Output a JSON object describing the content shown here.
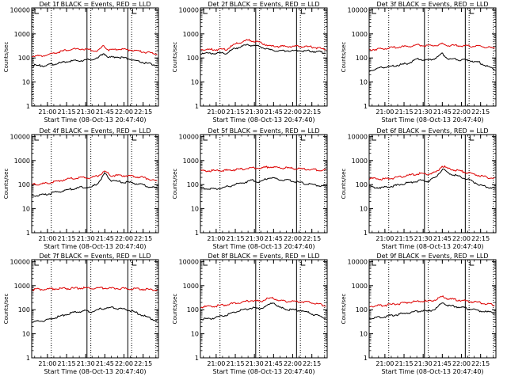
{
  "colors": {
    "events": "#000000",
    "lld": "#dd0000",
    "frame": "#000000",
    "background": "#ffffff"
  },
  "chart_data": [
    {
      "type": "line",
      "title": "Det 1f BLACK = Events, RED = LLD",
      "xlabel": "Start Time (08-Oct-13 20:47:40)",
      "ylabel": "Counts/sec",
      "yscale": "log",
      "ylim": [
        1,
        12000
      ],
      "xlim": [
        "20:47:40",
        "22:27:00"
      ],
      "x_ticks": [
        "21:00",
        "21:15",
        "21:30",
        "21:45",
        "22:00",
        "22:15"
      ],
      "y_ticks": [
        "1",
        "10",
        "100",
        "1000",
        "10000"
      ],
      "dotted_lines_at": [
        "20:49",
        "21:03",
        "21:34",
        "22:06",
        "22:25"
      ],
      "solid_lines_at": [
        "21:31",
        "22:03"
      ],
      "series": [
        {
          "name": "Events",
          "color": "#000000",
          "x": [
            "20:48",
            "20:58",
            "21:08",
            "21:18",
            "21:28",
            "21:34",
            "21:40",
            "21:44",
            "21:48",
            "21:55",
            "22:03",
            "22:10",
            "22:18",
            "22:26"
          ],
          "y": [
            50,
            48,
            58,
            75,
            80,
            85,
            100,
            160,
            105,
            110,
            95,
            75,
            60,
            50
          ]
        },
        {
          "name": "LLD",
          "color": "#dd0000",
          "x": [
            "20:48",
            "20:58",
            "21:08",
            "21:18",
            "21:28",
            "21:34",
            "21:40",
            "21:44",
            "21:48",
            "21:55",
            "22:03",
            "22:10",
            "22:18",
            "22:26"
          ],
          "y": [
            120,
            125,
            170,
            230,
            240,
            210,
            200,
            330,
            215,
            230,
            220,
            200,
            170,
            150
          ]
        }
      ]
    },
    {
      "type": "line",
      "title": "Det 2f BLACK = Events, RED = LLD",
      "xlabel": "Start Time (08-Oct-13 20:47:40)",
      "ylabel": "Counts/sec",
      "yscale": "log",
      "ylim": [
        1,
        12000
      ],
      "xlim": [
        "20:47:40",
        "22:27:00"
      ],
      "x_ticks": [
        "21:00",
        "21:15",
        "21:30",
        "21:45",
        "22:00",
        "22:15"
      ],
      "y_ticks": [
        "1",
        "10",
        "100",
        "1000",
        "10000"
      ],
      "dotted_lines_at": [
        "21:03",
        "21:34",
        "22:06",
        "22:25"
      ],
      "solid_lines_at": [
        "21:31",
        "22:03"
      ],
      "series": [
        {
          "name": "Events",
          "color": "#000000",
          "x": [
            "20:48",
            "20:58",
            "21:08",
            "21:15",
            "21:25",
            "21:34",
            "21:42",
            "21:50",
            "21:58",
            "22:06",
            "22:14",
            "22:20",
            "22:26"
          ],
          "y": [
            160,
            155,
            160,
            250,
            350,
            300,
            210,
            200,
            200,
            200,
            195,
            180,
            160
          ]
        },
        {
          "name": "LLD",
          "color": "#dd0000",
          "x": [
            "20:48",
            "20:58",
            "21:08",
            "21:15",
            "21:25",
            "21:34",
            "21:42",
            "21:50",
            "21:58",
            "22:06",
            "22:14",
            "22:20",
            "22:26"
          ],
          "y": [
            230,
            220,
            230,
            380,
            550,
            450,
            310,
            300,
            300,
            300,
            290,
            260,
            220
          ]
        }
      ]
    },
    {
      "type": "line",
      "title": "Det 3f BLACK = Events, RED = LLD",
      "xlabel": "Start Time (08-Oct-13 20:47:40)",
      "ylabel": "Counts/sec",
      "yscale": "log",
      "ylim": [
        1,
        12000
      ],
      "xlim": [
        "20:47:40",
        "22:27:00"
      ],
      "x_ticks": [
        "21:00",
        "21:15",
        "21:30",
        "21:45",
        "22:00",
        "22:15"
      ],
      "y_ticks": [
        "1",
        "10",
        "100",
        "1000",
        "10000"
      ],
      "dotted_lines_at": [
        "21:03",
        "21:34",
        "22:06",
        "22:25"
      ],
      "solid_lines_at": [
        "21:31",
        "22:03"
      ],
      "series": [
        {
          "name": "Events",
          "color": "#000000",
          "x": [
            "20:48",
            "20:58",
            "21:08",
            "21:18",
            "21:26",
            "21:34",
            "21:40",
            "21:45",
            "21:50",
            "21:58",
            "22:06",
            "22:14",
            "22:20",
            "22:26"
          ],
          "y": [
            30,
            40,
            48,
            60,
            90,
            80,
            100,
            150,
            90,
            85,
            80,
            65,
            45,
            35
          ]
        },
        {
          "name": "LLD",
          "color": "#dd0000",
          "x": [
            "20:48",
            "20:58",
            "21:08",
            "21:18",
            "21:26",
            "21:34",
            "21:40",
            "21:45",
            "21:50",
            "21:58",
            "22:06",
            "22:14",
            "22:20",
            "22:26"
          ],
          "y": [
            220,
            240,
            280,
            300,
            340,
            320,
            330,
            380,
            330,
            320,
            310,
            300,
            280,
            250
          ]
        }
      ]
    },
    {
      "type": "line",
      "title": "Det 4f BLACK = Events, RED = LLD",
      "xlabel": "Start Time (08-Oct-13 20:47:40)",
      "ylabel": "Counts/sec",
      "yscale": "log",
      "ylim": [
        1,
        12000
      ],
      "xlim": [
        "20:47:40",
        "22:27:00"
      ],
      "x_ticks": [
        "21:00",
        "21:15",
        "21:30",
        "21:45",
        "22:00",
        "22:15"
      ],
      "y_ticks": [
        "1",
        "10",
        "100",
        "1000",
        "10000"
      ],
      "dotted_lines_at": [
        "21:03",
        "21:34",
        "22:06",
        "22:25"
      ],
      "solid_lines_at": [
        "21:31",
        "22:03"
      ],
      "series": [
        {
          "name": "Events",
          "color": "#000000",
          "x": [
            "20:48",
            "20:58",
            "21:08",
            "21:18",
            "21:28",
            "21:34",
            "21:40",
            "21:45",
            "21:50",
            "21:58",
            "22:06",
            "22:14",
            "22:20",
            "22:26"
          ],
          "y": [
            35,
            38,
            50,
            65,
            80,
            75,
            120,
            300,
            150,
            130,
            120,
            100,
            80,
            70
          ]
        },
        {
          "name": "LLD",
          "color": "#dd0000",
          "x": [
            "20:48",
            "20:58",
            "21:08",
            "21:18",
            "21:28",
            "21:34",
            "21:40",
            "21:45",
            "21:50",
            "21:58",
            "22:06",
            "22:14",
            "22:20",
            "22:26"
          ],
          "y": [
            100,
            110,
            140,
            180,
            200,
            190,
            240,
            350,
            240,
            240,
            230,
            200,
            170,
            140
          ]
        }
      ]
    },
    {
      "type": "line",
      "title": "Det 5f BLACK = Events, RED = LLD",
      "xlabel": "Start Time (08-Oct-13 20:47:40)",
      "ylabel": "Counts/sec",
      "yscale": "log",
      "ylim": [
        1,
        12000
      ],
      "xlim": [
        "20:47:40",
        "22:27:00"
      ],
      "x_ticks": [
        "21:00",
        "21:15",
        "21:30",
        "21:45",
        "22:00",
        "22:15"
      ],
      "y_ticks": [
        "1",
        "10",
        "100",
        "1000",
        "10000"
      ],
      "dotted_lines_at": [
        "21:03",
        "21:34",
        "22:06",
        "22:25"
      ],
      "solid_lines_at": [
        "21:31",
        "22:03"
      ],
      "series": [
        {
          "name": "Events",
          "color": "#000000",
          "x": [
            "20:48",
            "20:58",
            "21:08",
            "21:18",
            "21:28",
            "21:34",
            "21:42",
            "21:50",
            "21:58",
            "22:06",
            "22:14",
            "22:20",
            "22:26"
          ],
          "y": [
            70,
            65,
            80,
            110,
            150,
            130,
            200,
            160,
            150,
            120,
            100,
            95,
            80
          ]
        },
        {
          "name": "LLD",
          "color": "#dd0000",
          "x": [
            "20:48",
            "20:58",
            "21:08",
            "21:18",
            "21:28",
            "21:34",
            "21:42",
            "21:50",
            "21:58",
            "22:06",
            "22:14",
            "22:20",
            "22:26"
          ],
          "y": [
            380,
            380,
            390,
            430,
            500,
            480,
            560,
            500,
            480,
            450,
            420,
            410,
            400
          ]
        }
      ]
    },
    {
      "type": "line",
      "title": "Det 6f BLACK = Events, RED = LLD",
      "xlabel": "Start Time (08-Oct-13 20:47:40)",
      "ylabel": "Counts/sec",
      "yscale": "log",
      "ylim": [
        1,
        12000
      ],
      "xlim": [
        "20:47:40",
        "22:27:00"
      ],
      "x_ticks": [
        "21:00",
        "21:15",
        "21:30",
        "21:45",
        "22:00",
        "22:15"
      ],
      "y_ticks": [
        "1",
        "10",
        "100",
        "1000",
        "10000"
      ],
      "dotted_lines_at": [
        "21:03",
        "21:34",
        "22:06",
        "22:25"
      ],
      "solid_lines_at": [
        "21:31",
        "22:03"
      ],
      "series": [
        {
          "name": "Events",
          "color": "#000000",
          "x": [
            "20:48",
            "20:58",
            "21:08",
            "21:18",
            "21:28",
            "21:34",
            "21:40",
            "21:45",
            "21:50",
            "21:58",
            "22:06",
            "22:14",
            "22:20",
            "22:26"
          ],
          "y": [
            80,
            75,
            90,
            120,
            150,
            140,
            200,
            450,
            300,
            220,
            160,
            100,
            80,
            70
          ]
        },
        {
          "name": "LLD",
          "color": "#dd0000",
          "x": [
            "20:48",
            "20:58",
            "21:08",
            "21:18",
            "21:28",
            "21:34",
            "21:40",
            "21:45",
            "21:50",
            "21:58",
            "22:06",
            "22:14",
            "22:20",
            "22:26"
          ],
          "y": [
            180,
            170,
            190,
            240,
            290,
            270,
            320,
            600,
            450,
            380,
            300,
            240,
            200,
            180
          ]
        }
      ]
    },
    {
      "type": "line",
      "title": "Det 7f BLACK = Events, RED = LLD",
      "xlabel": "Start Time (08-Oct-13 20:47:40)",
      "ylabel": "Counts/sec",
      "yscale": "log",
      "ylim": [
        1,
        12000
      ],
      "xlim": [
        "20:47:40",
        "22:27:00"
      ],
      "x_ticks": [
        "21:00",
        "21:15",
        "21:30",
        "21:45",
        "22:00",
        "22:15"
      ],
      "y_ticks": [
        "1",
        "10",
        "100",
        "1000",
        "10000"
      ],
      "dotted_lines_at": [
        "21:03",
        "21:34",
        "22:06",
        "22:25"
      ],
      "solid_lines_at": [
        "21:31",
        "22:03"
      ],
      "series": [
        {
          "name": "Events",
          "color": "#000000",
          "x": [
            "20:48",
            "20:58",
            "21:08",
            "21:18",
            "21:28",
            "21:34",
            "21:42",
            "21:50",
            "21:58",
            "22:06",
            "22:14",
            "22:20",
            "22:26"
          ],
          "y": [
            30,
            35,
            50,
            70,
            90,
            80,
            110,
            120,
            110,
            90,
            60,
            45,
            35
          ]
        },
        {
          "name": "LLD",
          "color": "#dd0000",
          "x": [
            "20:48",
            "20:58",
            "21:08",
            "21:18",
            "21:28",
            "21:34",
            "21:42",
            "21:50",
            "21:58",
            "22:06",
            "22:14",
            "22:20",
            "22:26"
          ],
          "y": [
            700,
            720,
            750,
            770,
            800,
            780,
            800,
            780,
            760,
            740,
            720,
            700,
            680
          ]
        }
      ]
    },
    {
      "type": "line",
      "title": "Det 8f BLACK = Events, RED = LLD",
      "xlabel": "Start Time (08-Oct-13 20:47:40)",
      "ylabel": "Counts/sec",
      "yscale": "log",
      "ylim": [
        1,
        12000
      ],
      "xlim": [
        "20:47:40",
        "22:27:00"
      ],
      "x_ticks": [
        "21:00",
        "21:15",
        "21:30",
        "21:45",
        "22:00",
        "22:15"
      ],
      "y_ticks": [
        "1",
        "10",
        "100",
        "1000",
        "10000"
      ],
      "dotted_lines_at": [
        "21:03",
        "21:34",
        "22:06",
        "22:25"
      ],
      "solid_lines_at": [
        "21:31",
        "22:03"
      ],
      "series": [
        {
          "name": "Events",
          "color": "#000000",
          "x": [
            "20:48",
            "20:58",
            "21:08",
            "21:18",
            "21:28",
            "21:34",
            "21:40",
            "21:45",
            "21:50",
            "21:58",
            "22:06",
            "22:14",
            "22:20",
            "22:26"
          ],
          "y": [
            40,
            45,
            60,
            90,
            120,
            110,
            150,
            200,
            120,
            100,
            95,
            70,
            55,
            45
          ]
        },
        {
          "name": "LLD",
          "color": "#dd0000",
          "x": [
            "20:48",
            "20:58",
            "21:08",
            "21:18",
            "21:28",
            "21:34",
            "21:40",
            "21:45",
            "21:50",
            "21:58",
            "22:06",
            "22:14",
            "22:20",
            "22:26"
          ],
          "y": [
            130,
            140,
            160,
            200,
            240,
            220,
            280,
            300,
            230,
            220,
            220,
            200,
            170,
            150
          ]
        }
      ]
    },
    {
      "type": "line",
      "title": "Det 9f BLACK = Events, RED = LLD",
      "xlabel": "Start Time (08-Oct-13 20:47:40)",
      "ylabel": "Counts/sec",
      "yscale": "log",
      "ylim": [
        1,
        12000
      ],
      "xlim": [
        "20:47:40",
        "22:27:00"
      ],
      "x_ticks": [
        "21:00",
        "21:15",
        "21:30",
        "21:45",
        "22:00",
        "22:15"
      ],
      "y_ticks": [
        "1",
        "10",
        "100",
        "1000",
        "10000"
      ],
      "dotted_lines_at": [
        "21:03",
        "21:34",
        "22:06",
        "22:25"
      ],
      "solid_lines_at": [
        "21:31",
        "22:03"
      ],
      "series": [
        {
          "name": "Events",
          "color": "#000000",
          "x": [
            "20:48",
            "20:58",
            "21:08",
            "21:18",
            "21:28",
            "21:34",
            "21:40",
            "21:45",
            "21:50",
            "21:58",
            "22:06",
            "22:14",
            "22:20",
            "22:26"
          ],
          "y": [
            45,
            50,
            60,
            75,
            90,
            85,
            110,
            200,
            150,
            130,
            110,
            90,
            80,
            75
          ]
        },
        {
          "name": "LLD",
          "color": "#dd0000",
          "x": [
            "20:48",
            "20:58",
            "21:08",
            "21:18",
            "21:28",
            "21:34",
            "21:40",
            "21:45",
            "21:50",
            "21:58",
            "22:06",
            "22:14",
            "22:20",
            "22:26"
          ],
          "y": [
            140,
            150,
            170,
            200,
            230,
            220,
            260,
            350,
            280,
            250,
            220,
            200,
            170,
            160
          ]
        }
      ]
    }
  ]
}
